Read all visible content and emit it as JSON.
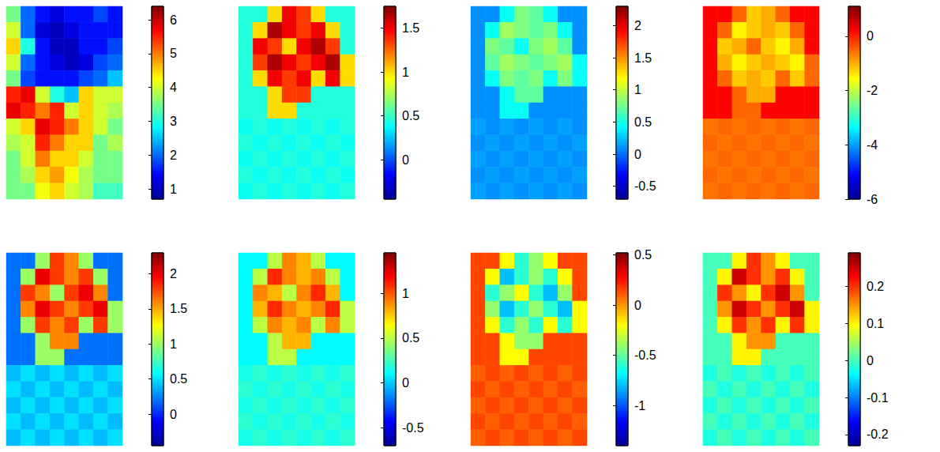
{
  "chart_data": [
    {
      "type": "heatmap",
      "tick_labels": false,
      "clim": [
        0.7,
        6.4
      ],
      "cticks": [
        1,
        2,
        3,
        4,
        5,
        6
      ],
      "cells": [
        [
          3.5,
          2.0,
          1.5,
          1.2,
          1.5,
          1.5,
          1.8,
          1.5
        ],
        [
          4.0,
          2.0,
          1.2,
          1.0,
          1.2,
          1.5,
          1.5,
          1.5
        ],
        [
          4.5,
          3.0,
          1.5,
          1.0,
          1.0,
          1.5,
          1.5,
          1.8
        ],
        [
          4.0,
          2.0,
          1.5,
          1.2,
          1.0,
          1.2,
          1.8,
          2.0
        ],
        [
          3.5,
          1.8,
          1.5,
          1.5,
          1.5,
          1.8,
          2.0,
          2.5
        ],
        [
          5.5,
          5.8,
          4.0,
          3.0,
          2.5,
          4.5,
          4.0,
          4.0
        ],
        [
          5.8,
          5.5,
          5.0,
          5.5,
          4.0,
          4.5,
          4.0,
          3.8
        ],
        [
          4.0,
          4.5,
          5.8,
          5.5,
          5.0,
          4.5,
          4.0,
          3.5
        ],
        [
          3.8,
          4.0,
          5.5,
          5.0,
          4.5,
          4.5,
          3.5,
          3.8
        ],
        [
          3.5,
          4.0,
          5.0,
          4.5,
          4.5,
          4.0,
          3.5,
          3.5
        ],
        [
          3.5,
          3.8,
          4.5,
          4.8,
          4.2,
          3.8,
          3.5,
          3.5
        ],
        [
          3.5,
          3.5,
          4.2,
          4.5,
          4.0,
          3.8,
          3.2,
          3.2
        ]
      ]
    },
    {
      "type": "heatmap",
      "tick_labels": false,
      "clim": [
        -0.45,
        1.75
      ],
      "cticks": [
        0,
        0.5,
        1,
        1.5
      ],
      "cells": [
        [
          0.45,
          0.45,
          1.0,
          1.5,
          1.35,
          1.0,
          0.45,
          0.45
        ],
        [
          0.45,
          1.0,
          1.65,
          1.5,
          1.35,
          1.5,
          1.0,
          0.45
        ],
        [
          0.45,
          1.5,
          1.35,
          1.0,
          1.5,
          1.65,
          1.35,
          0.45
        ],
        [
          0.45,
          1.35,
          1.65,
          1.5,
          1.35,
          1.5,
          1.65,
          1.0
        ],
        [
          0.45,
          1.0,
          1.5,
          1.35,
          1.5,
          1.0,
          1.5,
          1.0
        ],
        [
          0.45,
          0.45,
          1.0,
          1.35,
          1.35,
          0.45,
          0.45,
          0.45
        ],
        [
          0.45,
          0.45,
          1.0,
          1.0,
          0.45,
          0.45,
          0.45,
          0.45
        ],
        [
          0.4,
          0.45,
          0.4,
          0.45,
          0.4,
          0.45,
          0.4,
          0.45
        ],
        [
          0.45,
          0.4,
          0.45,
          0.4,
          0.45,
          0.4,
          0.45,
          0.4
        ],
        [
          0.4,
          0.45,
          0.4,
          0.45,
          0.4,
          0.45,
          0.4,
          0.45
        ],
        [
          0.45,
          0.4,
          0.45,
          0.4,
          0.45,
          0.4,
          0.45,
          0.4
        ],
        [
          0.4,
          0.45,
          0.4,
          0.45,
          0.4,
          0.45,
          0.4,
          0.45
        ]
      ]
    },
    {
      "type": "heatmap",
      "tick_labels": false,
      "clim": [
        -0.7,
        2.3
      ],
      "cticks": [
        -0.5,
        0,
        0.5,
        1,
        1.5,
        2
      ],
      "cells": [
        [
          0.1,
          0.1,
          0.45,
          0.8,
          0.7,
          0.45,
          0.1,
          0.1
        ],
        [
          0.1,
          0.45,
          0.9,
          0.8,
          0.7,
          0.8,
          0.45,
          0.1
        ],
        [
          0.1,
          0.8,
          0.7,
          0.45,
          0.8,
          0.9,
          0.7,
          0.1
        ],
        [
          0.1,
          0.7,
          0.9,
          0.8,
          0.7,
          0.8,
          0.9,
          0.45
        ],
        [
          0.1,
          0.45,
          0.8,
          0.7,
          0.8,
          0.45,
          0.8,
          0.45
        ],
        [
          0.1,
          0.1,
          0.45,
          0.7,
          0.7,
          0.1,
          0.1,
          0.1
        ],
        [
          0.1,
          0.1,
          0.45,
          0.45,
          0.1,
          0.1,
          0.1,
          0.1
        ],
        [
          0.15,
          0.1,
          0.15,
          0.1,
          0.15,
          0.1,
          0.15,
          0.1
        ],
        [
          0.1,
          0.15,
          0.1,
          0.15,
          0.1,
          0.15,
          0.1,
          0.15
        ],
        [
          0.15,
          0.1,
          0.15,
          0.1,
          0.15,
          0.1,
          0.15,
          0.1
        ],
        [
          0.1,
          0.15,
          0.1,
          0.15,
          0.1,
          0.15,
          0.1,
          0.15
        ],
        [
          0.15,
          0.1,
          0.15,
          0.1,
          0.15,
          0.1,
          0.15,
          0.1
        ]
      ]
    },
    {
      "type": "heatmap",
      "tick_labels": false,
      "clim": [
        -6,
        1.1
      ],
      "cticks": [
        -6,
        -4,
        -2,
        0
      ],
      "cells": [
        [
          0.2,
          0.2,
          -0.5,
          -1.2,
          -1.0,
          -0.5,
          0.2,
          0.2
        ],
        [
          0.2,
          -0.5,
          -1.5,
          -1.2,
          -1.0,
          -1.2,
          -0.5,
          0.2
        ],
        [
          0.2,
          -1.2,
          -1.0,
          -0.5,
          -1.2,
          -1.5,
          -1.0,
          0.2
        ],
        [
          0.2,
          -1.0,
          -1.5,
          -1.2,
          -1.0,
          -1.2,
          -1.5,
          -0.5
        ],
        [
          0.2,
          -0.5,
          -1.2,
          -1.0,
          -1.2,
          -0.5,
          -1.2,
          -0.5
        ],
        [
          0.2,
          0.2,
          -0.5,
          -1.0,
          -1.0,
          0.2,
          0.2,
          0.2
        ],
        [
          0.2,
          0.2,
          -0.5,
          -0.5,
          0.2,
          0.2,
          0.2,
          0.2
        ],
        [
          -0.6,
          -0.5,
          -0.6,
          -0.5,
          -0.6,
          -0.5,
          -0.6,
          -0.5
        ],
        [
          -0.5,
          -0.6,
          -0.5,
          -0.6,
          -0.5,
          -0.6,
          -0.5,
          -0.6
        ],
        [
          -0.6,
          -0.5,
          -0.6,
          -0.5,
          -0.6,
          -0.5,
          -0.6,
          -0.5
        ],
        [
          -0.5,
          -0.6,
          -0.5,
          -0.6,
          -0.5,
          -0.6,
          -0.5,
          -0.6
        ],
        [
          -0.6,
          -0.5,
          -0.6,
          -0.5,
          -0.6,
          -0.5,
          -0.6,
          -0.5
        ]
      ]
    },
    {
      "type": "heatmap",
      "tick_labels": false,
      "clim": [
        -0.45,
        2.3
      ],
      "cticks": [
        0,
        0.5,
        1,
        1.5,
        2
      ],
      "cells": [
        [
          0.2,
          0.2,
          1.0,
          1.8,
          1.6,
          1.0,
          0.2,
          0.2
        ],
        [
          0.2,
          1.0,
          2.0,
          1.8,
          1.6,
          1.8,
          1.0,
          0.2
        ],
        [
          0.2,
          1.8,
          1.6,
          1.0,
          1.8,
          2.0,
          1.6,
          0.2
        ],
        [
          0.2,
          1.6,
          2.0,
          1.8,
          1.6,
          1.8,
          2.0,
          1.0
        ],
        [
          0.2,
          1.0,
          1.8,
          1.6,
          1.8,
          1.0,
          1.8,
          1.0
        ],
        [
          0.2,
          0.2,
          1.0,
          1.6,
          1.6,
          0.2,
          0.2,
          0.2
        ],
        [
          0.2,
          0.2,
          1.0,
          1.0,
          0.2,
          0.2,
          0.2,
          0.2
        ],
        [
          0.4,
          0.5,
          0.4,
          0.5,
          0.4,
          0.5,
          0.4,
          0.5
        ],
        [
          0.5,
          0.4,
          0.5,
          0.4,
          0.5,
          0.4,
          0.5,
          0.4
        ],
        [
          0.4,
          0.5,
          0.4,
          0.5,
          0.4,
          0.5,
          0.4,
          0.5
        ],
        [
          0.5,
          0.4,
          0.5,
          0.4,
          0.5,
          0.4,
          0.5,
          0.4
        ],
        [
          0.4,
          0.5,
          0.4,
          0.5,
          0.4,
          0.5,
          0.4,
          0.5
        ]
      ]
    },
    {
      "type": "heatmap",
      "tick_labels": false,
      "clim": [
        -0.7,
        1.45
      ],
      "cticks": [
        -0.5,
        0,
        0.5,
        1
      ],
      "cells": [
        [
          0.1,
          0.1,
          0.5,
          0.9,
          0.8,
          0.5,
          0.1,
          0.1
        ],
        [
          0.1,
          0.5,
          1.1,
          0.9,
          0.8,
          0.9,
          0.5,
          0.1
        ],
        [
          0.1,
          0.9,
          0.8,
          0.5,
          0.9,
          1.1,
          0.8,
          0.1
        ],
        [
          0.1,
          0.8,
          1.1,
          0.9,
          0.8,
          0.9,
          1.1,
          0.5
        ],
        [
          0.1,
          0.5,
          0.9,
          0.8,
          0.9,
          0.5,
          0.9,
          0.5
        ],
        [
          0.1,
          0.1,
          0.5,
          0.8,
          0.8,
          0.1,
          0.1,
          0.1
        ],
        [
          0.1,
          0.1,
          0.5,
          0.5,
          0.1,
          0.1,
          0.1,
          0.1
        ],
        [
          0.15,
          0.2,
          0.15,
          0.2,
          0.15,
          0.2,
          0.15,
          0.2
        ],
        [
          0.2,
          0.15,
          0.2,
          0.15,
          0.2,
          0.15,
          0.2,
          0.15
        ],
        [
          0.15,
          0.2,
          0.15,
          0.2,
          0.15,
          0.2,
          0.15,
          0.2
        ],
        [
          0.2,
          0.15,
          0.2,
          0.15,
          0.2,
          0.15,
          0.2,
          0.15
        ],
        [
          0.15,
          0.2,
          0.15,
          0.2,
          0.15,
          0.2,
          0.15,
          0.2
        ]
      ]
    },
    {
      "type": "heatmap",
      "tick_labels": false,
      "clim": [
        -1.4,
        0.52
      ],
      "cticks": [
        -1,
        -0.5,
        0,
        0.5
      ],
      "cells": [
        [
          0.15,
          0.15,
          -0.2,
          -0.6,
          -0.4,
          -0.2,
          0.15,
          0.15
        ],
        [
          0.15,
          -0.2,
          -0.8,
          -0.6,
          -0.4,
          -0.6,
          -0.2,
          0.15
        ],
        [
          0.15,
          -0.6,
          -0.4,
          -0.2,
          -0.6,
          -0.8,
          -0.4,
          0.15
        ],
        [
          0.15,
          -0.4,
          -0.8,
          -0.6,
          -0.4,
          -0.6,
          -0.8,
          -0.2
        ],
        [
          0.15,
          -0.2,
          -0.6,
          -0.4,
          -0.6,
          -0.2,
          -0.6,
          -0.2
        ],
        [
          0.15,
          0.15,
          -0.2,
          -0.4,
          -0.4,
          0.15,
          0.15,
          0.15
        ],
        [
          0.15,
          0.15,
          -0.2,
          -0.2,
          0.15,
          0.15,
          0.15,
          0.15
        ],
        [
          0.1,
          0.15,
          0.1,
          0.15,
          0.1,
          0.15,
          0.1,
          0.15
        ],
        [
          0.15,
          0.1,
          0.15,
          0.1,
          0.15,
          0.1,
          0.15,
          0.1
        ],
        [
          0.1,
          0.15,
          0.1,
          0.15,
          0.1,
          0.15,
          0.1,
          0.15
        ],
        [
          0.15,
          0.1,
          0.15,
          0.1,
          0.15,
          0.1,
          0.15,
          0.1
        ],
        [
          0.1,
          0.15,
          0.1,
          0.15,
          0.1,
          0.15,
          0.1,
          0.15
        ]
      ]
    },
    {
      "type": "heatmap",
      "tick_labels": false,
      "clim": [
        -0.23,
        0.29
      ],
      "cticks": [
        -0.2,
        -0.1,
        0,
        0.1,
        0.2
      ],
      "cells": [
        [
          0,
          0,
          0.1,
          0.2,
          0.15,
          0.1,
          0,
          0
        ],
        [
          0,
          0.1,
          0.25,
          0.2,
          0.15,
          0.2,
          0.1,
          0
        ],
        [
          0,
          0.2,
          0.15,
          0.1,
          0.2,
          0.25,
          0.15,
          0
        ],
        [
          0,
          0.15,
          0.25,
          0.2,
          0.15,
          0.2,
          0.25,
          0.1
        ],
        [
          0,
          0.1,
          0.2,
          0.15,
          0.2,
          0.1,
          0.2,
          0.1
        ],
        [
          0,
          0,
          0.1,
          0.15,
          0.15,
          0,
          0,
          0
        ],
        [
          0,
          0,
          0.1,
          0.1,
          0,
          0,
          0,
          0
        ],
        [
          -0.02,
          0,
          -0.02,
          0,
          -0.02,
          0,
          -0.02,
          0
        ],
        [
          0,
          -0.02,
          0,
          -0.02,
          0,
          -0.02,
          0,
          -0.02
        ],
        [
          -0.02,
          0,
          -0.02,
          0,
          -0.02,
          0,
          -0.02,
          0
        ],
        [
          0,
          -0.02,
          0,
          -0.02,
          0,
          -0.02,
          0,
          -0.02
        ],
        [
          -0.02,
          0,
          -0.02,
          0,
          -0.02,
          0,
          -0.02,
          0
        ]
      ]
    }
  ]
}
